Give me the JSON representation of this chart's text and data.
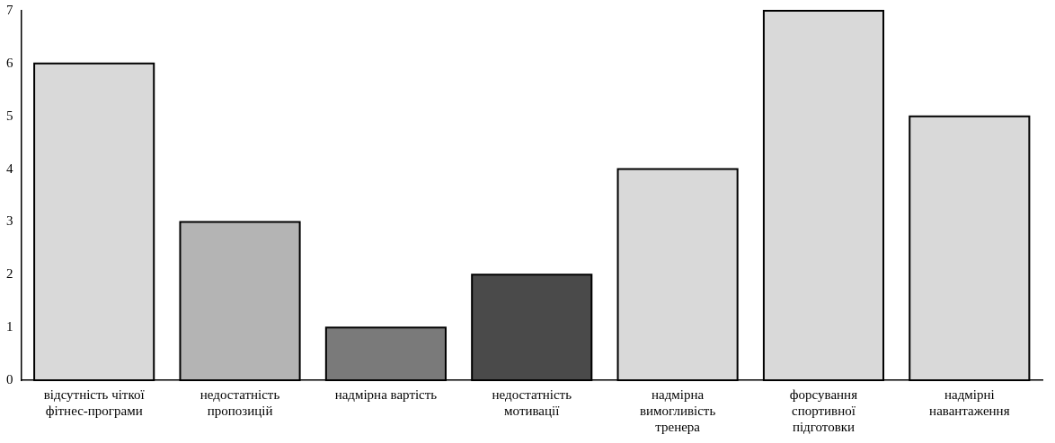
{
  "chart_data": {
    "type": "bar",
    "categories": [
      "відсутність чіткої фітнес-програми",
      "недостатність пропозицій",
      "надмірна вартість",
      "недостатність мотивації",
      "надмірна вимогливість тренера",
      "форсування спортивної підготовки",
      "надмірні навантаження"
    ],
    "values": [
      6,
      3,
      1,
      2,
      4,
      7,
      5
    ],
    "colors": [
      "#d9d9d9",
      "#b4b4b4",
      "#7a7a7a",
      "#4a4a4a",
      "#d9d9d9",
      "#d9d9d9",
      "#d9d9d9"
    ],
    "ylim": [
      0,
      7
    ],
    "yticks": [
      0,
      1,
      2,
      3,
      4,
      5,
      6,
      7
    ],
    "grid": false,
    "legend": false
  }
}
